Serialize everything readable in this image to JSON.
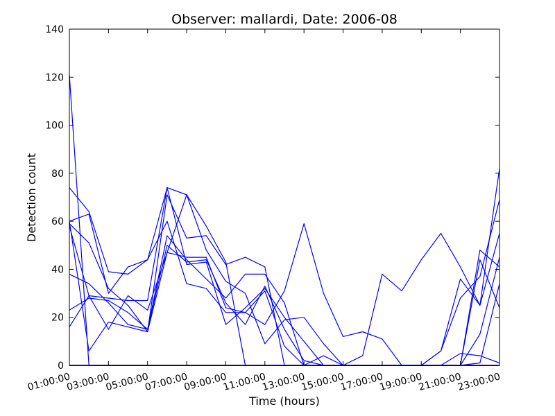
{
  "chart_data": {
    "type": "line",
    "title": "Observer: mallardi, Date: 2006-08",
    "xlabel": "Time (hours)",
    "ylabel": "Detection count",
    "x_ticks": [
      "01:00:00",
      "03:00:00",
      "05:00:00",
      "07:00:00",
      "09:00:00",
      "11:00:00",
      "13:00:00",
      "15:00:00",
      "17:00:00",
      "19:00:00",
      "21:00:00",
      "23:00:00"
    ],
    "y_ticks": [
      "0",
      "20",
      "40",
      "60",
      "80",
      "100",
      "120",
      "140"
    ],
    "xlim": [
      1,
      23
    ],
    "ylim": [
      0,
      140
    ],
    "line_color": "#0000ff",
    "grid": false,
    "x": [
      1,
      2,
      3,
      4,
      5,
      6,
      7,
      8,
      9,
      10,
      11,
      12,
      13,
      14,
      15,
      16,
      17,
      18,
      19,
      20,
      21,
      22,
      23
    ],
    "series": [
      {
        "values": [
          121,
          0,
          0,
          0,
          0,
          0,
          0,
          0,
          0,
          0,
          0,
          0,
          0,
          0,
          0,
          0,
          0,
          0,
          0,
          0,
          0,
          0,
          0
        ]
      },
      {
        "values": [
          74,
          64,
          39,
          38,
          44,
          74,
          71,
          58,
          43,
          0,
          0,
          0,
          0,
          0,
          0,
          0,
          0,
          0,
          0,
          0,
          0,
          0,
          0
        ]
      },
      {
        "values": [
          60,
          6,
          18,
          16,
          14,
          71,
          53,
          54,
          42,
          45,
          41,
          0,
          0,
          0,
          0,
          0,
          0,
          0,
          0,
          0,
          0,
          0,
          0
        ]
      },
      {
        "values": [
          59,
          51,
          32,
          25,
          14,
          47,
          45,
          45,
          24,
          22,
          31,
          8,
          0,
          0,
          0,
          0,
          0,
          0,
          0,
          0,
          0,
          0,
          0
        ]
      },
      {
        "values": [
          58,
          29,
          28,
          27,
          27,
          74,
          42,
          43,
          17,
          24,
          32,
          20,
          10,
          0,
          0,
          0,
          0,
          0,
          0,
          0,
          0,
          0,
          0
        ]
      },
      {
        "values": [
          38,
          34,
          26,
          17,
          15,
          54,
          44,
          36,
          28,
          38,
          38,
          26,
          0,
          0,
          0,
          0,
          0,
          0,
          0,
          0,
          0,
          0,
          0
        ]
      },
      {
        "values": [
          23,
          28,
          27,
          22,
          15,
          50,
          43,
          44,
          26,
          17,
          33,
          15,
          2,
          0,
          0,
          0,
          0,
          0,
          0,
          0,
          0,
          0,
          0
        ]
      },
      {
        "values": [
          16,
          29,
          15,
          29,
          23,
          47,
          71,
          48,
          35,
          30,
          9,
          19,
          20,
          9,
          0,
          0,
          0,
          0,
          0,
          0,
          0,
          13,
          45
        ]
      },
      {
        "values": [
          60,
          63,
          30,
          41,
          44,
          60,
          34,
          32,
          22,
          22,
          17,
          31,
          59,
          30,
          12,
          14,
          11,
          0,
          0,
          0,
          0,
          44,
          24
        ]
      },
      {
        "values": [
          0,
          0,
          0,
          0,
          0,
          0,
          0,
          0,
          0,
          0,
          0,
          0,
          0,
          4,
          0,
          4,
          38,
          31,
          44,
          55,
          41,
          25,
          82
        ]
      },
      {
        "values": [
          0,
          0,
          0,
          0,
          0,
          0,
          0,
          0,
          0,
          0,
          0,
          0,
          0,
          0,
          0,
          0,
          0,
          0,
          0,
          6,
          28,
          37,
          69
        ]
      },
      {
        "values": [
          0,
          0,
          0,
          0,
          0,
          0,
          0,
          0,
          0,
          0,
          0,
          0,
          0,
          0,
          0,
          0,
          0,
          0,
          0,
          6,
          36,
          25,
          55
        ]
      },
      {
        "values": [
          0,
          0,
          0,
          0,
          0,
          0,
          0,
          0,
          0,
          0,
          0,
          0,
          0,
          0,
          0,
          0,
          0,
          0,
          0,
          0,
          0,
          48,
          41
        ]
      },
      {
        "values": [
          0,
          0,
          0,
          0,
          0,
          0,
          0,
          0,
          0,
          0,
          0,
          0,
          0,
          0,
          0,
          0,
          0,
          0,
          0,
          0,
          0,
          1,
          34
        ]
      },
      {
        "values": [
          0,
          0,
          0,
          0,
          0,
          0,
          0,
          0,
          0,
          0,
          0,
          0,
          0,
          0,
          0,
          0,
          0,
          0,
          0,
          0,
          5,
          4,
          1
        ]
      }
    ]
  }
}
